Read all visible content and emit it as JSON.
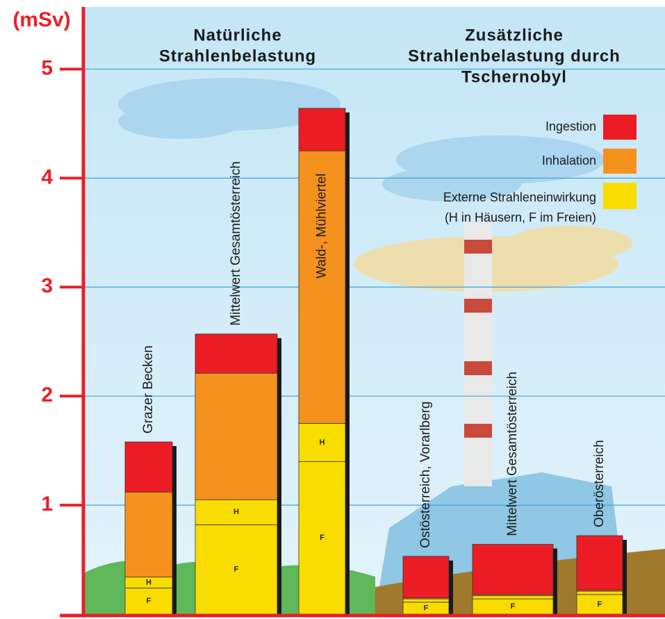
{
  "chart_data": {
    "type": "stacked_bar",
    "y_label": "(mSv)",
    "group_titles": [
      [
        "Natürliche",
        "Strahlenbelastung"
      ],
      [
        "Zusätzliche",
        "Strahlenbelastung durch",
        "Tschernobyl"
      ]
    ],
    "categories": [
      "Grazer Becken",
      "Mittelwert Gesamtösterreich",
      "Wald-, Mühlviertel",
      "Ostösterreich, Vorarlberg",
      "Mittelwert Gesamtösterreich",
      "Oberösterreich"
    ],
    "series": [
      {
        "name": "F",
        "color": "#f9dc00",
        "values": [
          0.24,
          0.82,
          1.4,
          0.11,
          0.14,
          0.18
        ]
      },
      {
        "name": "H",
        "color": "#f9dc00",
        "values": [
          0.1,
          0.23,
          0.35,
          0.03,
          0.03,
          0.03
        ]
      },
      {
        "name": "Inhalation",
        "color": "#f5921e",
        "values": [
          0.78,
          1.16,
          2.5,
          0.01,
          0.01,
          0.01
        ]
      },
      {
        "name": "Ingestion",
        "color": "#ec1c24",
        "values": [
          0.46,
          0.36,
          0.39,
          0.38,
          0.46,
          0.5
        ]
      }
    ],
    "external_label": "Externe Strahleneinwirkung",
    "external_note": "(H in Häusern, F im Freien)",
    "ylim": [
      0,
      5.57
    ],
    "yticks": [
      1,
      2,
      3,
      4,
      5
    ],
    "grid": true,
    "axis_color": "#e8202a",
    "grid_color": "#3da3d8"
  }
}
